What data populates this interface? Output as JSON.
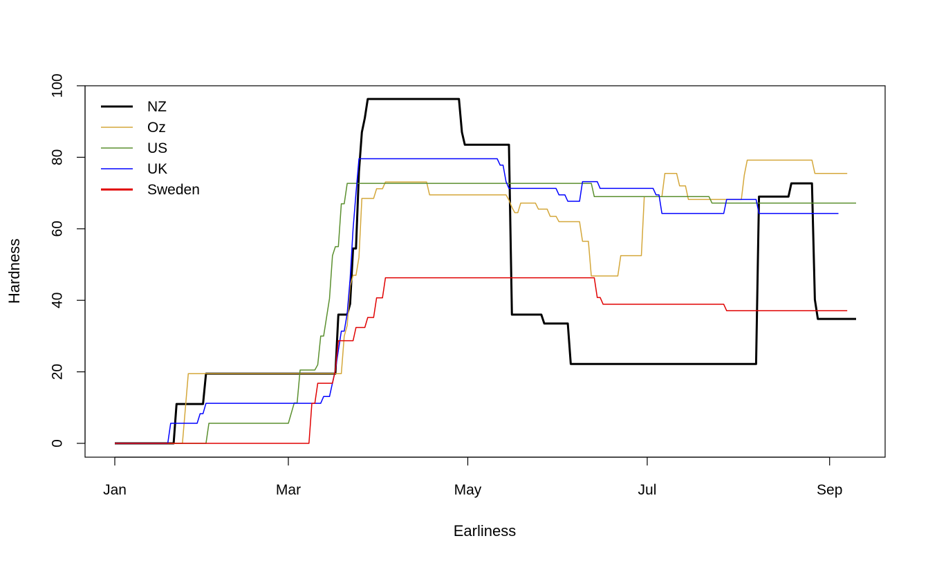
{
  "chart_data": {
    "type": "line",
    "xlabel": "Earliness",
    "ylabel": "Hardness",
    "x_unit": "day of year",
    "xlim": [
      1,
      253
    ],
    "ylim": [
      0,
      100
    ],
    "x_ticks": [
      {
        "day": 1,
        "label": "Jan"
      },
      {
        "day": 60,
        "label": "Mar"
      },
      {
        "day": 121,
        "label": "May"
      },
      {
        "day": 182,
        "label": "Jul"
      },
      {
        "day": 244,
        "label": "Sep"
      }
    ],
    "y_ticks": [
      0,
      20,
      40,
      60,
      80,
      100
    ],
    "grid": false,
    "legend_position": "top-left",
    "series": [
      {
        "name": "NZ",
        "color": "#000000",
        "width": 3,
        "points": [
          [
            1,
            0
          ],
          [
            21,
            0
          ],
          [
            22,
            11
          ],
          [
            31,
            11
          ],
          [
            32,
            19.5
          ],
          [
            76,
            19.5
          ],
          [
            77,
            36
          ],
          [
            80,
            36
          ],
          [
            81,
            39
          ],
          [
            82,
            54.5
          ],
          [
            83,
            54.5
          ],
          [
            84,
            76
          ],
          [
            85,
            87
          ],
          [
            86,
            91
          ],
          [
            87,
            96.3
          ],
          [
            118,
            96.3
          ],
          [
            119,
            87
          ],
          [
            120,
            83.5
          ],
          [
            135,
            83.5
          ],
          [
            136,
            36
          ],
          [
            146,
            36
          ],
          [
            147,
            33.5
          ],
          [
            155,
            33.5
          ],
          [
            156,
            22.2
          ],
          [
            219,
            22.2
          ],
          [
            220,
            69
          ],
          [
            230,
            69
          ],
          [
            231,
            72.7
          ],
          [
            238,
            72.7
          ],
          [
            239,
            40.2
          ],
          [
            240,
            34.8
          ],
          [
            253,
            34.8
          ]
        ]
      },
      {
        "name": "Oz",
        "color": "#d4a73a",
        "width": 1.5,
        "points": [
          [
            1,
            0
          ],
          [
            24,
            0
          ],
          [
            26,
            19.5
          ],
          [
            78,
            19.5
          ],
          [
            79,
            30
          ],
          [
            80,
            33
          ],
          [
            81,
            44
          ],
          [
            82,
            47
          ],
          [
            83,
            47
          ],
          [
            84,
            52
          ],
          [
            85,
            68.5
          ],
          [
            89,
            68.5
          ],
          [
            90,
            71.2
          ],
          [
            92,
            71.2
          ],
          [
            93,
            73.1
          ],
          [
            107,
            73.1
          ],
          [
            108,
            69.5
          ],
          [
            134,
            69.5
          ],
          [
            135,
            68
          ],
          [
            136,
            66
          ],
          [
            137,
            64.5
          ],
          [
            138,
            64.5
          ],
          [
            139,
            67.2
          ],
          [
            144,
            67.2
          ],
          [
            145,
            65.5
          ],
          [
            148,
            65.5
          ],
          [
            149,
            63.5
          ],
          [
            151,
            63.5
          ],
          [
            152,
            62
          ],
          [
            159,
            62
          ],
          [
            160,
            56.5
          ],
          [
            162,
            56.5
          ],
          [
            163,
            46.8
          ],
          [
            172,
            46.8
          ],
          [
            173,
            52.5
          ],
          [
            180,
            52.5
          ],
          [
            181,
            69
          ],
          [
            187,
            69
          ],
          [
            188,
            75.5
          ],
          [
            192,
            75.5
          ],
          [
            193,
            72
          ],
          [
            195,
            72
          ],
          [
            196,
            68.2
          ],
          [
            214,
            68.2
          ],
          [
            215,
            75
          ],
          [
            216,
            79.2
          ],
          [
            238,
            79.2
          ],
          [
            239,
            75.5
          ],
          [
            250,
            75.5
          ]
        ]
      },
      {
        "name": "US",
        "color": "#5a8f2e",
        "width": 1.5,
        "points": [
          [
            1,
            0
          ],
          [
            32,
            0
          ],
          [
            33,
            5.6
          ],
          [
            60,
            5.6
          ],
          [
            62,
            11.3
          ],
          [
            63,
            11.3
          ],
          [
            64,
            20.5
          ],
          [
            69,
            20.5
          ],
          [
            70,
            22
          ],
          [
            71,
            30
          ],
          [
            72,
            30
          ],
          [
            74,
            40.5
          ],
          [
            75,
            52.5
          ],
          [
            76,
            55
          ],
          [
            77,
            55
          ],
          [
            78,
            67
          ],
          [
            79,
            67
          ],
          [
            80,
            72.7
          ],
          [
            135,
            72.7
          ],
          [
            136,
            72.7
          ],
          [
            163,
            72.7
          ],
          [
            164,
            69
          ],
          [
            203,
            69
          ],
          [
            204,
            67.2
          ],
          [
            253,
            67.2
          ]
        ]
      },
      {
        "name": "UK",
        "color": "#0000ff",
        "width": 1.5,
        "points": [
          [
            1,
            0
          ],
          [
            19,
            0
          ],
          [
            20,
            5.6
          ],
          [
            29,
            5.6
          ],
          [
            30,
            8.3
          ],
          [
            31,
            8.3
          ],
          [
            32,
            11.2
          ],
          [
            71,
            11.2
          ],
          [
            72,
            13.1
          ],
          [
            74,
            13.1
          ],
          [
            75,
            16.9
          ],
          [
            76,
            20.5
          ],
          [
            77,
            26
          ],
          [
            78,
            31.4
          ],
          [
            79,
            31.4
          ],
          [
            80,
            36.3
          ],
          [
            81,
            46
          ],
          [
            82,
            60
          ],
          [
            83,
            70
          ],
          [
            84,
            79.6
          ],
          [
            131,
            79.6
          ],
          [
            132,
            77.8
          ],
          [
            133,
            77.8
          ],
          [
            134,
            73.2
          ],
          [
            135,
            71.3
          ],
          [
            151,
            71.3
          ],
          [
            152,
            69.5
          ],
          [
            154,
            69.5
          ],
          [
            155,
            67.7
          ],
          [
            159,
            67.7
          ],
          [
            160,
            73.2
          ],
          [
            165,
            73.2
          ],
          [
            166,
            71.3
          ],
          [
            184,
            71.3
          ],
          [
            185,
            69.5
          ],
          [
            186,
            69.5
          ],
          [
            187,
            64.3
          ],
          [
            208,
            64.3
          ],
          [
            209,
            68.2
          ],
          [
            219,
            68.2
          ],
          [
            220,
            64.3
          ],
          [
            247,
            64.3
          ]
        ]
      },
      {
        "name": "Sweden",
        "color": "#e00000",
        "width": 1.5,
        "points": [
          [
            1,
            0
          ],
          [
            67,
            0
          ],
          [
            68,
            11.2
          ],
          [
            69,
            11.2
          ],
          [
            70,
            16.8
          ],
          [
            75,
            16.8
          ],
          [
            76,
            20.5
          ],
          [
            77,
            28.7
          ],
          [
            82,
            28.7
          ],
          [
            83,
            32.4
          ],
          [
            86,
            32.4
          ],
          [
            87,
            35.2
          ],
          [
            89,
            35.2
          ],
          [
            90,
            40.7
          ],
          [
            92,
            40.7
          ],
          [
            93,
            46.3
          ],
          [
            164,
            46.3
          ],
          [
            165,
            40.8
          ],
          [
            166,
            40.8
          ],
          [
            167,
            38.9
          ],
          [
            208,
            38.9
          ],
          [
            209,
            37.1
          ],
          [
            250,
            37.1
          ]
        ]
      }
    ]
  }
}
